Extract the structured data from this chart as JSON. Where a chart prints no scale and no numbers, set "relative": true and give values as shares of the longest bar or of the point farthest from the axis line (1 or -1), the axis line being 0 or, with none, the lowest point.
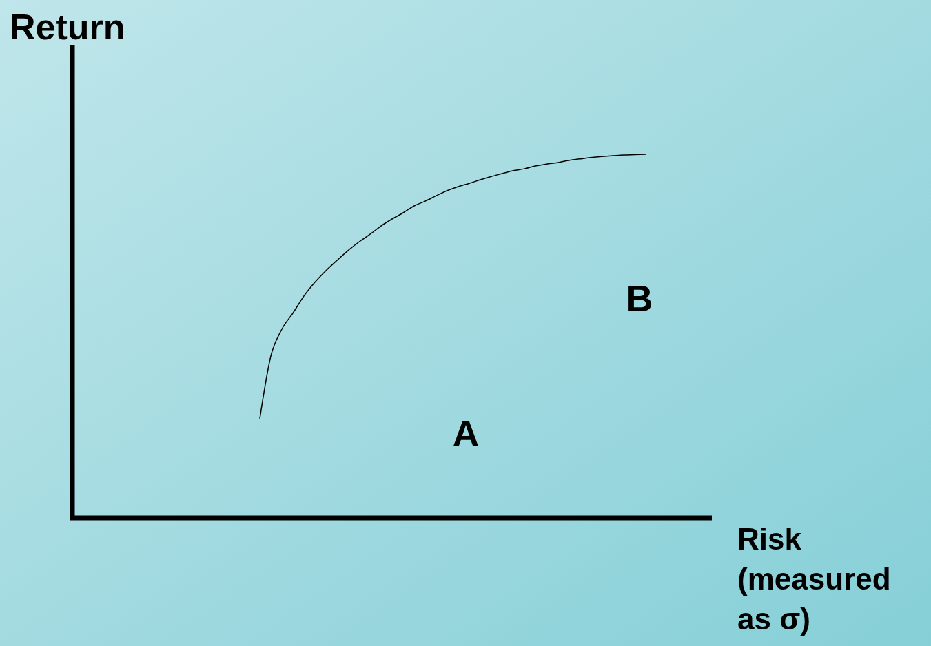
{
  "chart_data": {
    "type": "line",
    "relative": true,
    "ylabel": "Return",
    "xlabel": "Risk (measured as σ)",
    "annotations": [
      "A",
      "B"
    ],
    "categories": [
      null,
      null,
      null,
      null,
      null,
      null,
      null,
      null,
      null,
      null,
      null,
      null,
      null,
      null,
      null,
      null,
      null,
      null,
      null,
      null,
      null,
      null,
      null,
      null,
      null,
      null,
      null,
      null,
      null,
      null,
      null,
      null,
      null,
      null,
      null,
      null,
      null,
      null,
      null,
      null,
      null,
      null,
      null,
      null,
      null,
      null,
      null,
      null,
      null,
      null,
      null,
      null,
      null,
      null,
      null,
      null,
      null,
      null
    ],
    "series": [
      {
        "color": "#000000",
        "values": [
          null,
          null,
          null,
          null,
          null,
          null,
          null,
          null,
          null,
          null,
          null,
          null,
          null,
          null,
          null,
          null,
          null,
          0.273,
          0.445,
          0.519,
          0.563,
          0.61,
          0.648,
          0.68,
          0.708,
          0.735,
          0.759,
          0.78,
          0.803,
          0.822,
          0.839,
          0.858,
          0.871,
          0.886,
          0.9,
          0.911,
          0.92,
          0.93,
          0.939,
          0.947,
          0.955,
          0.96,
          0.968,
          0.973,
          0.977,
          0.983,
          0.987,
          0.991,
          0.994,
          0.996,
          0.998,
          0.999,
          1,
          null,
          null,
          null,
          null,
          null
        ]
      }
    ]
  }
}
